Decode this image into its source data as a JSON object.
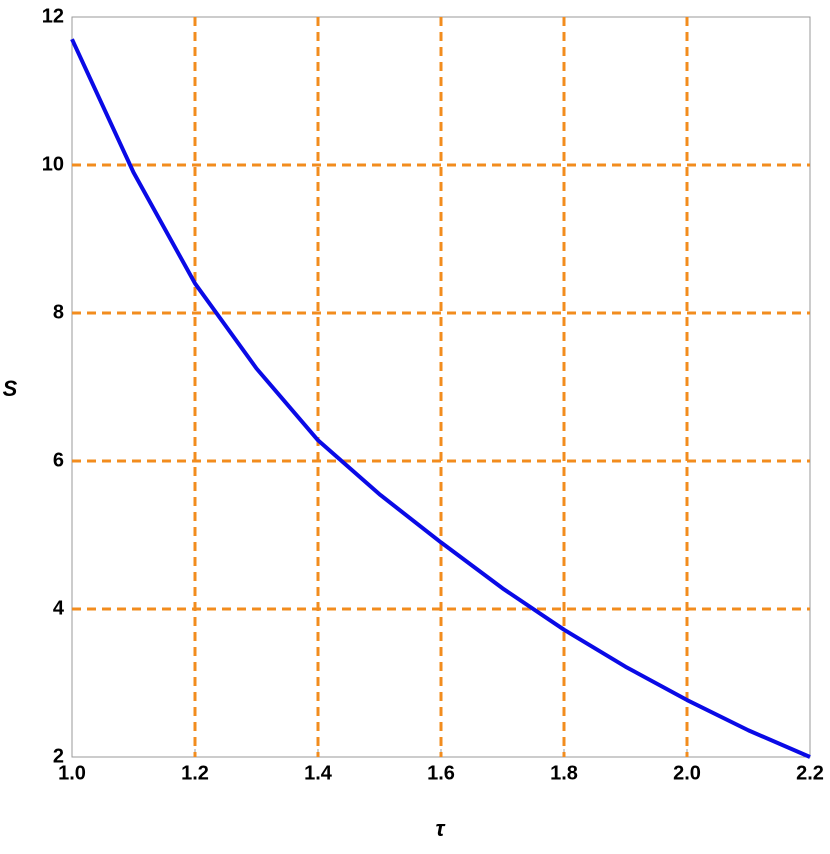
{
  "chart_data": {
    "type": "line",
    "xlabel": "τ",
    "ylabel": "S",
    "x": [
      1.0,
      1.1,
      1.2,
      1.3,
      1.4,
      1.5,
      1.6,
      1.7,
      1.8,
      1.9,
      2.0,
      2.1,
      2.2
    ],
    "values": [
      11.7,
      9.9,
      8.4,
      7.25,
      6.28,
      5.55,
      4.9,
      4.28,
      3.72,
      3.22,
      2.77,
      2.36,
      2.0
    ],
    "color": "#0a0ae6",
    "xlim": [
      1.0,
      2.2
    ],
    "xticks": [
      {
        "value": 1.0,
        "label": "1.0"
      },
      1.2,
      1.4,
      1.6,
      1.8,
      {
        "value": 2.0,
        "label": "2.0"
      },
      2.2
    ],
    "ylim": [
      2,
      12
    ],
    "yticks": [
      2,
      4,
      6,
      8,
      10,
      12
    ],
    "grid": true,
    "grid_color": "#f28c1e"
  }
}
